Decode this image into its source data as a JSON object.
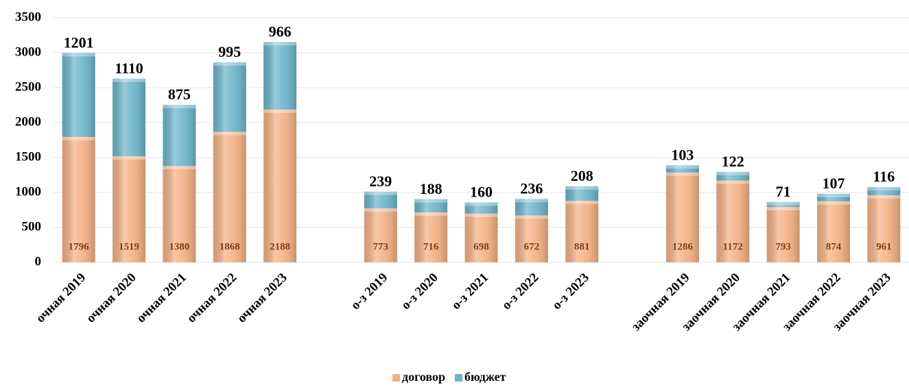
{
  "chart_data": {
    "type": "stacked_bar",
    "categories": [
      "очная 2019",
      "очная 2020",
      "очная 2021",
      "очная 2022",
      "очная 2023",
      null,
      "о-з 2019",
      "о-з 2020",
      "о-з 2021",
      "о-з 2022",
      "о-з 2023",
      null,
      "заочная 2019",
      "заочная 2020",
      "заочная 2021",
      "заочная 2022",
      "заочная 2023"
    ],
    "series": [
      {
        "name": "договор",
        "color": "#f4b183",
        "values": [
          1796,
          1519,
          1380,
          1868,
          2188,
          null,
          773,
          716,
          698,
          672,
          881,
          null,
          1286,
          1172,
          793,
          874,
          961
        ]
      },
      {
        "name": "бюджет",
        "color": "#6bb5cb",
        "values": [
          1201,
          1110,
          875,
          995,
          966,
          null,
          239,
          188,
          160,
          236,
          208,
          null,
          103,
          122,
          71,
          107,
          116
        ]
      }
    ],
    "ylim": [
      0,
      3500
    ],
    "yticks": [
      0,
      500,
      1000,
      1500,
      2000,
      2500,
      3000,
      3500
    ],
    "grid": true,
    "legend": "bottom"
  }
}
